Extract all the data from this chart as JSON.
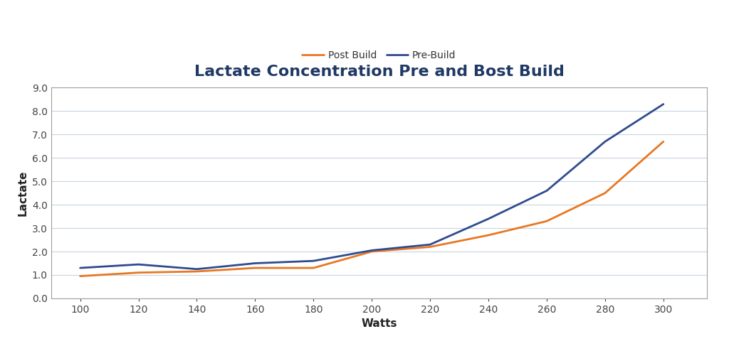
{
  "title": "Lactate Concentration Pre and Bost Build",
  "xlabel": "Watts",
  "ylabel": "Lactate",
  "x": [
    100,
    120,
    140,
    160,
    180,
    200,
    220,
    240,
    260,
    280,
    300
  ],
  "post_build": [
    0.95,
    1.1,
    1.15,
    1.3,
    1.3,
    2.0,
    2.2,
    2.7,
    3.3,
    4.5,
    6.7
  ],
  "pre_build": [
    1.3,
    1.45,
    1.25,
    1.5,
    1.6,
    2.05,
    2.3,
    3.4,
    4.6,
    6.7,
    8.3
  ],
  "post_build_color": "#E87722",
  "pre_build_color": "#2E4B8F",
  "post_build_label": "Post Build",
  "pre_build_label": "Pre-Build",
  "ylim": [
    0.0,
    9.0
  ],
  "yticks": [
    0.0,
    1.0,
    2.0,
    3.0,
    4.0,
    5.0,
    6.0,
    7.0,
    8.0,
    9.0
  ],
  "xlim": [
    90,
    315
  ],
  "xticks": [
    100,
    120,
    140,
    160,
    180,
    200,
    220,
    240,
    260,
    280,
    300
  ],
  "background_color": "#FFFFFF",
  "plot_bg_color": "#FFFFFF",
  "title_color": "#1F3864",
  "title_fontsize": 16,
  "axis_label_fontsize": 11,
  "tick_fontsize": 10,
  "line_width": 2.0,
  "legend_fontsize": 10,
  "grid_color": "#C8D4E0",
  "spine_color": "#A0A0A0"
}
